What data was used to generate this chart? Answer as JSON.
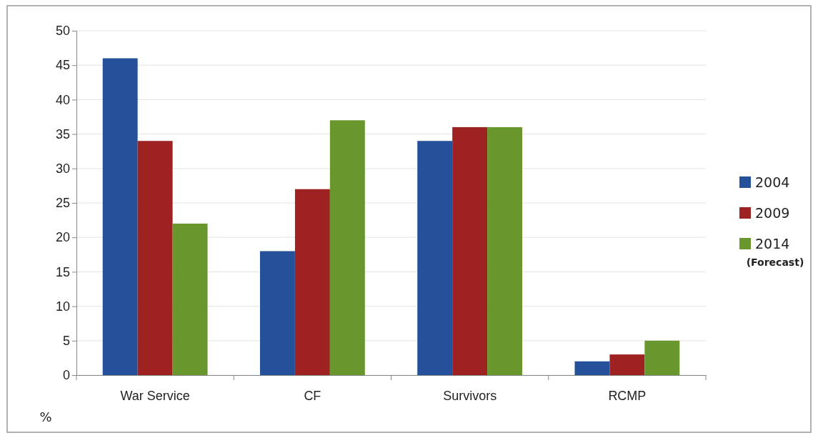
{
  "chart_data": {
    "type": "bar",
    "ylabel": "%",
    "categories": [
      "War Service",
      "CF",
      "Survivors",
      "RCMP"
    ],
    "series": [
      {
        "name": "2004",
        "color": "#24519a",
        "values": [
          46,
          18,
          34,
          2
        ]
      },
      {
        "name": "2009",
        "color": "#9e2222",
        "values": [
          34,
          27,
          36,
          3
        ]
      },
      {
        "name": "2014\n(Forecast)",
        "color": "#6a972d",
        "values": [
          22,
          37,
          36,
          5
        ]
      }
    ],
    "ylim": [
      0,
      50
    ],
    "yticks": [
      0,
      5,
      10,
      15,
      20,
      25,
      30,
      35,
      40,
      45,
      50
    ],
    "grid": "y",
    "legend": "right"
  }
}
